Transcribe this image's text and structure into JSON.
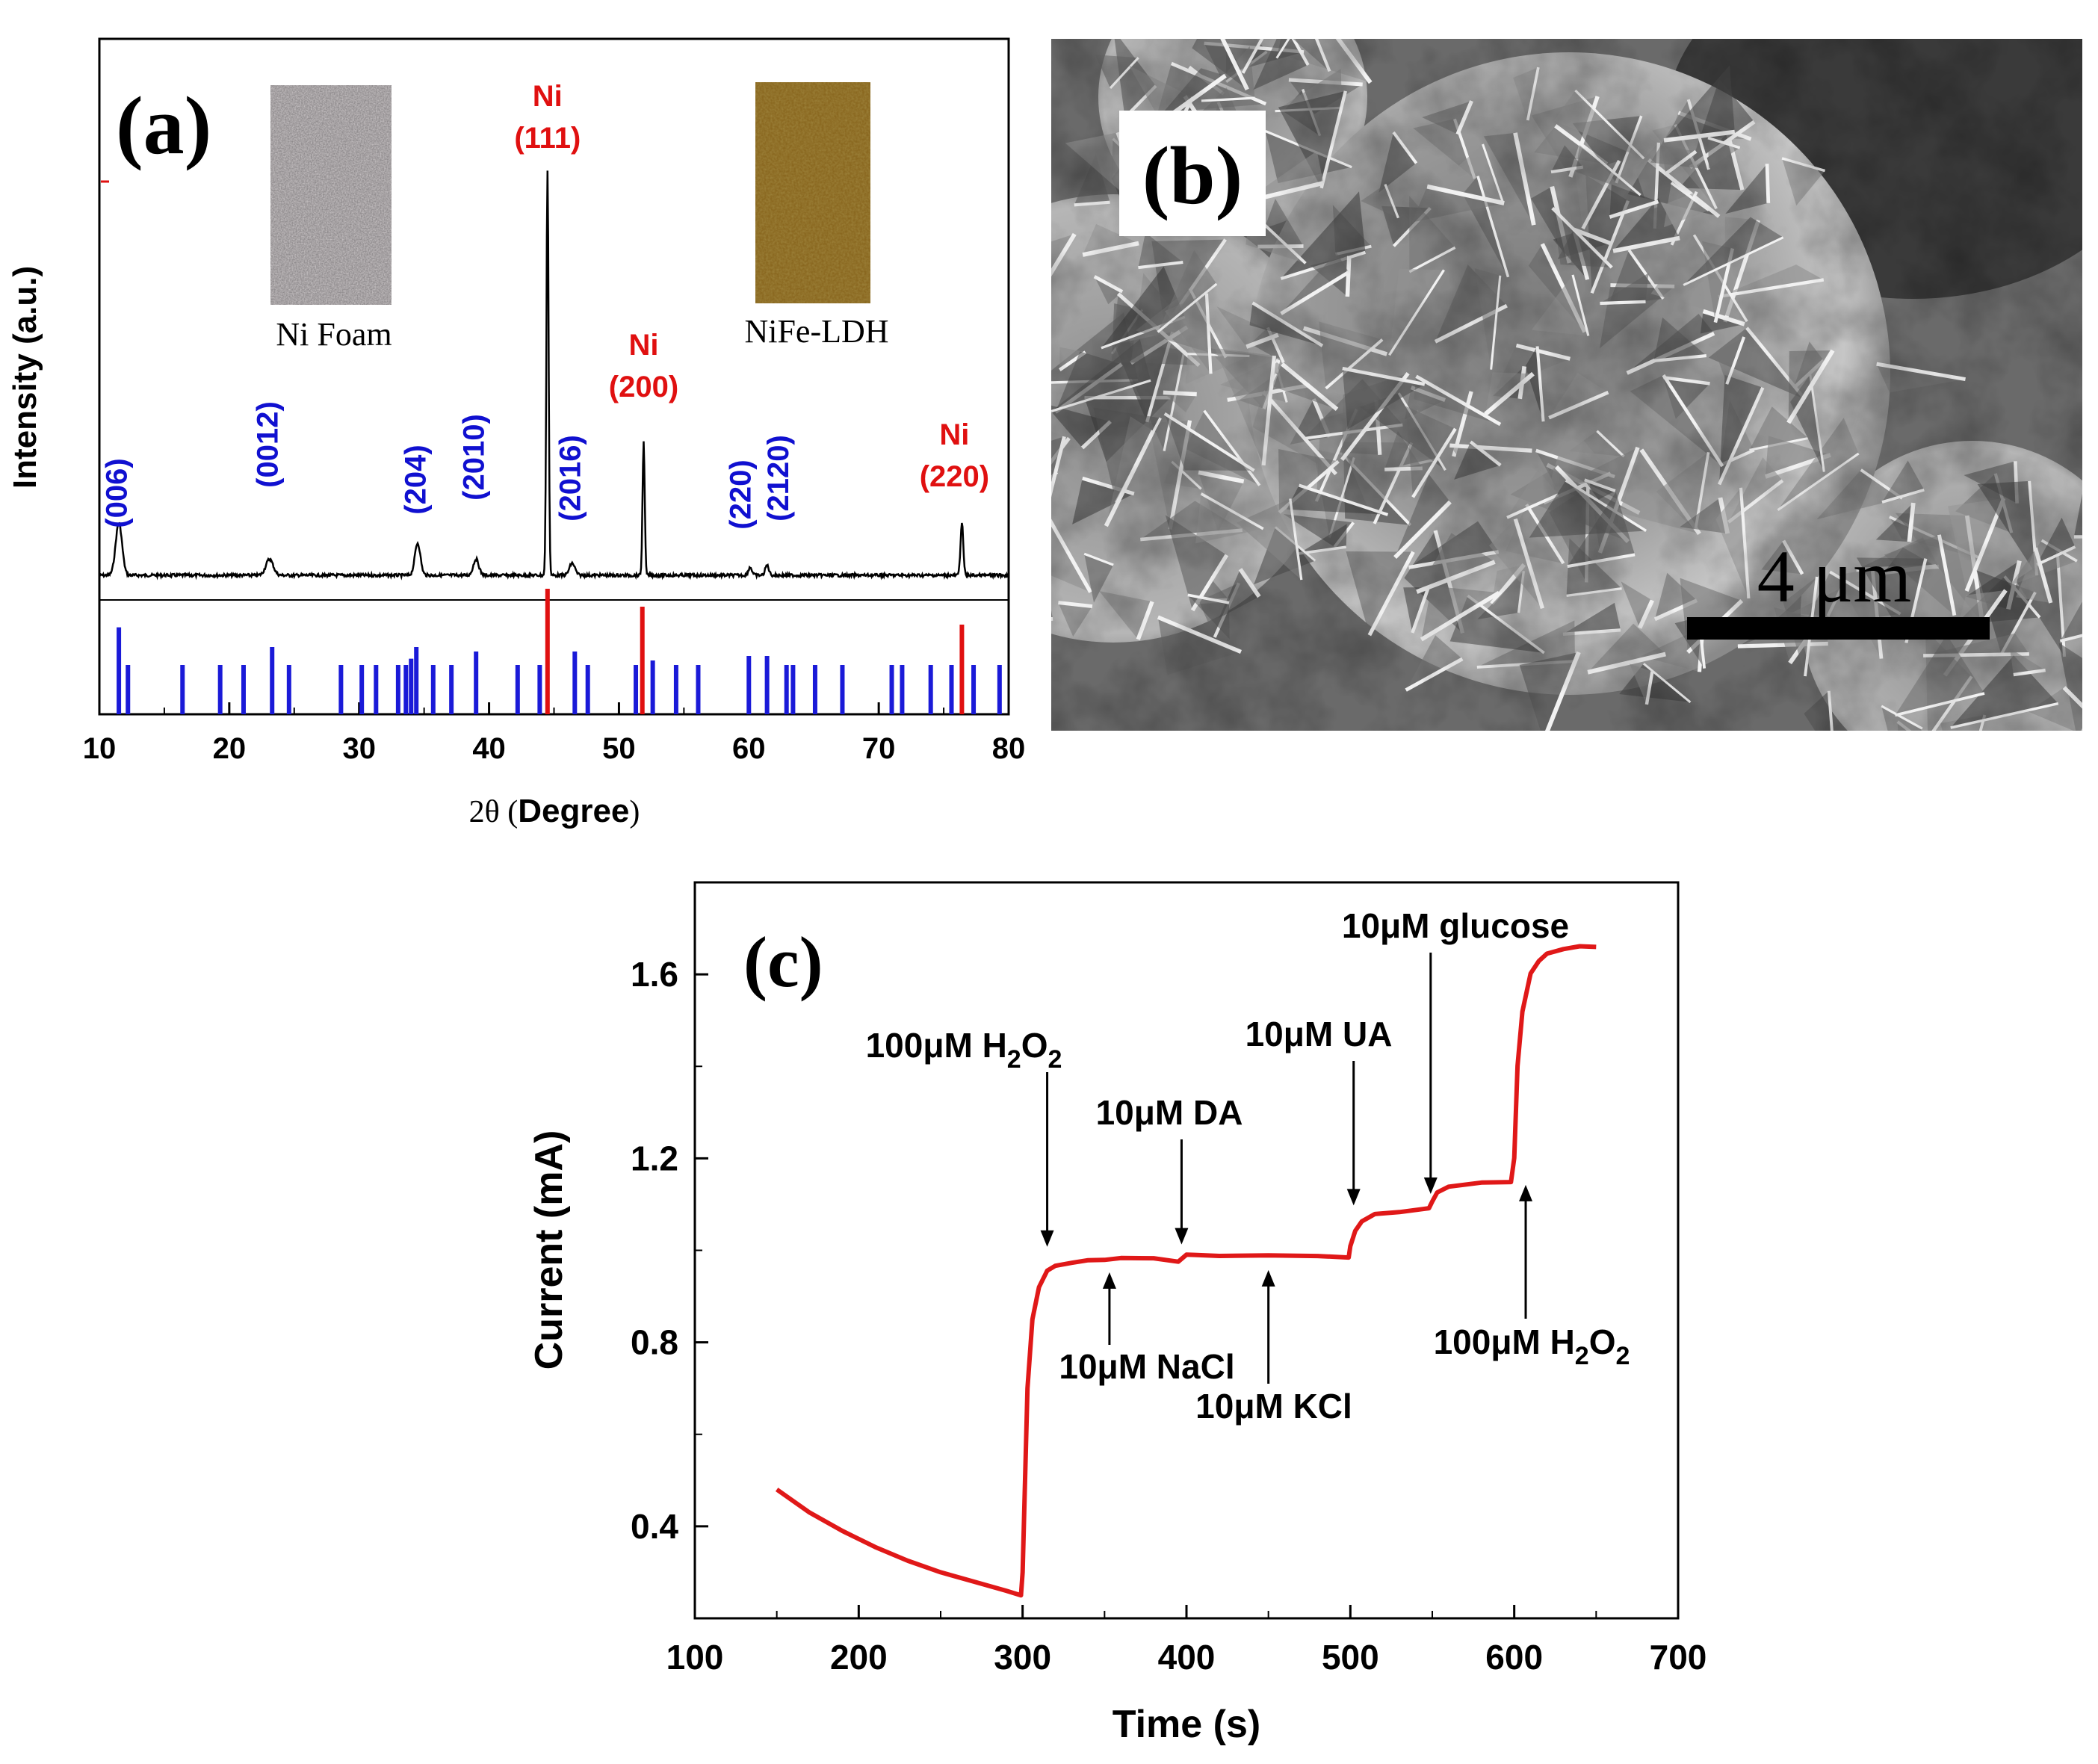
{
  "chart_data": [
    {
      "panel": "(a)",
      "type": "line",
      "xlabel_prefix": "2θ (",
      "xlabel_main": "Degree",
      "xlabel_suffix": ")",
      "ylabel": "Intensity (a.u.)",
      "xlim": [
        10,
        80
      ],
      "xticks": [
        10,
        20,
        30,
        40,
        50,
        60,
        70,
        80
      ],
      "inset_labels": [
        "Ni Foam",
        "NiFe-LDH"
      ],
      "peaks": [
        {
          "x": 11.5,
          "h": 0.13,
          "w": 0.35,
          "label": "(006)",
          "color": "#1010d0"
        },
        {
          "x": 23.1,
          "h": 0.04,
          "w": 0.4,
          "label": "(0012)",
          "color": "#1010d0"
        },
        {
          "x": 34.5,
          "h": 0.08,
          "w": 0.3,
          "label": "(204)",
          "color": "#1010d0"
        },
        {
          "x": 39.0,
          "h": 0.04,
          "w": 0.3,
          "label": "(2010)",
          "color": "#1010d0"
        },
        {
          "x": 44.5,
          "h": 1.0,
          "w": 0.12,
          "label": "Ni\n(111)",
          "color": "#e01010"
        },
        {
          "x": 46.4,
          "h": 0.03,
          "w": 0.3,
          "label": "(2016)",
          "color": "#1010d0"
        },
        {
          "x": 51.9,
          "h": 0.33,
          "w": 0.12,
          "label": "Ni\n(200)",
          "color": "#e01010"
        },
        {
          "x": 60.1,
          "h": 0.02,
          "w": 0.2,
          "label": "(220)",
          "color": "#1010d0"
        },
        {
          "x": 61.4,
          "h": 0.025,
          "w": 0.2,
          "label": "(2120)",
          "color": "#1010d0"
        },
        {
          "x": 76.4,
          "h": 0.13,
          "w": 0.15,
          "label": "Ni\n(220)",
          "color": "#e01010"
        }
      ],
      "reference_lines_blue": [
        {
          "x": 11.5,
          "h": 0.97
        },
        {
          "x": 12.2,
          "h": 0.55
        },
        {
          "x": 16.4,
          "h": 0.55
        },
        {
          "x": 19.3,
          "h": 0.55
        },
        {
          "x": 21.1,
          "h": 0.55
        },
        {
          "x": 23.3,
          "h": 0.75
        },
        {
          "x": 24.6,
          "h": 0.55
        },
        {
          "x": 28.6,
          "h": 0.55
        },
        {
          "x": 30.2,
          "h": 0.55
        },
        {
          "x": 31.3,
          "h": 0.55
        },
        {
          "x": 33.0,
          "h": 0.55
        },
        {
          "x": 33.6,
          "h": 0.55
        },
        {
          "x": 34.0,
          "h": 0.62
        },
        {
          "x": 34.4,
          "h": 0.75
        },
        {
          "x": 35.7,
          "h": 0.55
        },
        {
          "x": 37.1,
          "h": 0.55
        },
        {
          "x": 39.0,
          "h": 0.7
        },
        {
          "x": 42.2,
          "h": 0.55
        },
        {
          "x": 43.9,
          "h": 0.55
        },
        {
          "x": 46.6,
          "h": 0.7
        },
        {
          "x": 47.6,
          "h": 0.55
        },
        {
          "x": 51.3,
          "h": 0.55
        },
        {
          "x": 52.6,
          "h": 0.6
        },
        {
          "x": 54.4,
          "h": 0.55
        },
        {
          "x": 56.1,
          "h": 0.55
        },
        {
          "x": 60.0,
          "h": 0.65
        },
        {
          "x": 61.4,
          "h": 0.65
        },
        {
          "x": 62.9,
          "h": 0.55
        },
        {
          "x": 63.4,
          "h": 0.55
        },
        {
          "x": 65.1,
          "h": 0.55
        },
        {
          "x": 67.2,
          "h": 0.55
        },
        {
          "x": 71.0,
          "h": 0.55
        },
        {
          "x": 71.8,
          "h": 0.55
        },
        {
          "x": 74.0,
          "h": 0.55
        },
        {
          "x": 75.6,
          "h": 0.55
        },
        {
          "x": 77.3,
          "h": 0.55
        },
        {
          "x": 79.3,
          "h": 0.55
        }
      ],
      "reference_lines_red": [
        {
          "x": 44.5,
          "h": 1.4
        },
        {
          "x": 51.8,
          "h": 1.2
        },
        {
          "x": 76.4,
          "h": 1.0
        }
      ]
    },
    {
      "panel": "(b)",
      "type": "image",
      "scale_bar_label": "4 μm"
    },
    {
      "panel": "(c)",
      "type": "line",
      "xlabel": "Time (s)",
      "ylabel": "Current (mA)",
      "xlim": [
        100,
        700
      ],
      "ylim": [
        0.2,
        1.8
      ],
      "xticks": [
        100,
        200,
        300,
        400,
        500,
        600,
        700
      ],
      "yticks": [
        "0.4",
        "0.8",
        "1.2",
        "1.6"
      ],
      "ytick_values": [
        0.4,
        0.8,
        1.2,
        1.6
      ],
      "series_color": "#e01818",
      "series": [
        {
          "x": [
            150,
            170,
            190,
            210,
            230,
            250,
            270,
            290,
            299,
            300,
            303,
            306,
            310,
            315,
            320,
            330,
            340,
            350,
            360,
            380,
            395,
            400,
            405,
            420,
            450,
            480,
            499,
            500,
            503,
            507,
            515,
            530,
            548,
            550,
            553,
            560,
            580,
            598,
            600,
            602,
            605,
            610,
            615,
            620,
            630,
            640,
            650
          ],
          "y": [
            0.48,
            0.43,
            0.39,
            0.355,
            0.325,
            0.3,
            0.28,
            0.26,
            0.25,
            0.3,
            0.7,
            0.85,
            0.92,
            0.955,
            0.965,
            0.975,
            0.978,
            0.98,
            0.982,
            0.985,
            0.975,
            0.99,
            0.99,
            0.99,
            0.99,
            0.987,
            0.985,
            1.01,
            1.04,
            1.065,
            1.08,
            1.085,
            1.09,
            1.105,
            1.125,
            1.14,
            1.148,
            1.15,
            1.2,
            1.4,
            1.52,
            1.6,
            1.63,
            1.645,
            1.655,
            1.66,
            1.66
          ]
        }
      ],
      "annotations": [
        {
          "text": "100μM H2O2",
          "x": 315,
          "dir": "down",
          "y_tip": 0.985
        },
        {
          "text": "10μM DA",
          "x": 397,
          "dir": "down",
          "y_tip": 0.99
        },
        {
          "text": "10μM NaCl",
          "x": 353,
          "dir": "up",
          "y_tip": 0.975
        },
        {
          "text": "10μM KCl",
          "x": 450,
          "dir": "up",
          "y_tip": 0.98
        },
        {
          "text": "10μM UA",
          "x": 502,
          "dir": "down",
          "y_tip": 1.075
        },
        {
          "text": "10μM glucose",
          "x": 549,
          "dir": "down",
          "y_tip": 1.1
        },
        {
          "text": "100μM H2O2",
          "x": 607,
          "dir": "up",
          "y_tip": 1.165
        }
      ]
    }
  ],
  "panels": {
    "a_label": "(a)",
    "b_label": "(b)",
    "c_label": "(c)"
  }
}
